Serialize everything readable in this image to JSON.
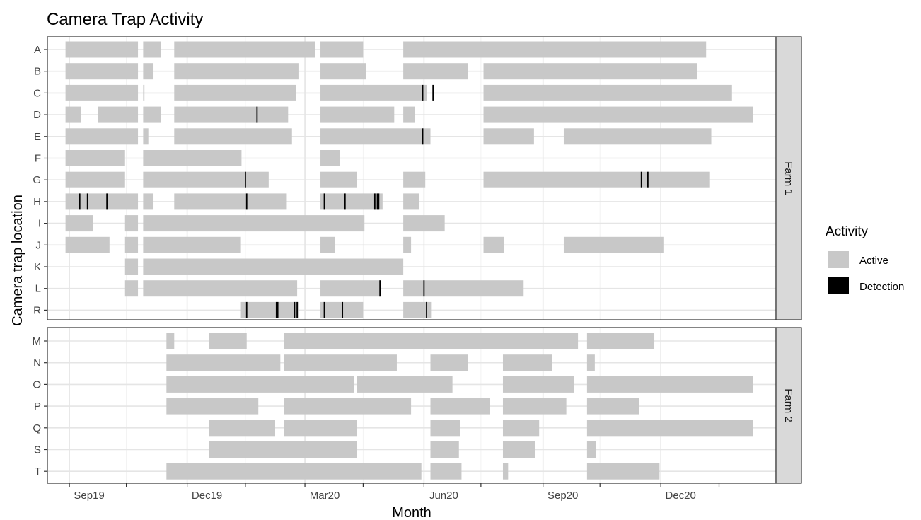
{
  "chart_data": {
    "type": "timeline",
    "title": "Camera Trap Activity",
    "xlabel": "Month",
    "ylabel": "Camera trap location",
    "grid": true,
    "x_range": [
      "2019-08-15",
      "2021-02-28"
    ],
    "x_ticks": [
      {
        "date": "2019-09-01",
        "label": "Sep19"
      },
      {
        "date": "2019-12-01",
        "label": "Dec19"
      },
      {
        "date": "2020-03-01",
        "label": "Mar20"
      },
      {
        "date": "2020-06-01",
        "label": "Jun20"
      },
      {
        "date": "2020-09-01",
        "label": "Sep20"
      },
      {
        "date": "2020-12-01",
        "label": "Dec20"
      }
    ],
    "legend": {
      "title": "Activity",
      "position": "right",
      "items": [
        {
          "label": "Active",
          "color": "#c8c8c8"
        },
        {
          "label": "Detection",
          "color": "#000000"
        }
      ]
    },
    "facets": [
      {
        "label": "Farm 1",
        "rows": [
          {
            "location": "A",
            "active": [
              [
                "2019-08-29",
                "2019-10-24"
              ],
              [
                "2019-10-28",
                "2019-11-11"
              ],
              [
                "2019-11-21",
                "2020-03-09"
              ],
              [
                "2020-03-13",
                "2020-04-15"
              ],
              [
                "2020-05-16",
                "2021-01-05"
              ]
            ],
            "detections": []
          },
          {
            "location": "B",
            "active": [
              [
                "2019-08-29",
                "2019-10-24"
              ],
              [
                "2019-10-28",
                "2019-11-05"
              ],
              [
                "2019-11-21",
                "2020-02-25"
              ],
              [
                "2020-03-13",
                "2020-04-17"
              ],
              [
                "2020-05-16",
                "2020-07-05"
              ],
              [
                "2020-07-17",
                "2020-12-29"
              ]
            ],
            "detections": []
          },
          {
            "location": "C",
            "active": [
              [
                "2019-08-29",
                "2019-10-24"
              ],
              [
                "2019-10-28",
                "2019-10-29"
              ],
              [
                "2019-11-21",
                "2020-02-23"
              ],
              [
                "2020-03-13",
                "2020-06-03"
              ],
              [
                "2020-07-17",
                "2021-01-25"
              ]
            ],
            "detections": [
              "2020-05-31",
              "2020-06-08"
            ]
          },
          {
            "location": "D",
            "active": [
              [
                "2019-08-29",
                "2019-09-10"
              ],
              [
                "2019-09-23",
                "2019-10-24"
              ],
              [
                "2019-10-28",
                "2019-11-11"
              ],
              [
                "2019-11-21",
                "2020-02-17"
              ],
              [
                "2020-03-13",
                "2020-05-09"
              ],
              [
                "2020-05-16",
                "2020-05-25"
              ],
              [
                "2020-07-17",
                "2021-02-10"
              ]
            ],
            "detections": [
              "2020-01-24"
            ]
          },
          {
            "location": "E",
            "active": [
              [
                "2019-08-29",
                "2019-10-24"
              ],
              [
                "2019-10-28",
                "2019-11-01"
              ],
              [
                "2019-11-21",
                "2020-02-20"
              ],
              [
                "2020-03-13",
                "2020-06-06"
              ],
              [
                "2020-07-17",
                "2020-08-25"
              ],
              [
                "2020-09-17",
                "2021-01-09"
              ]
            ],
            "detections": [
              "2020-05-31"
            ]
          },
          {
            "location": "F",
            "active": [
              [
                "2019-08-29",
                "2019-10-14"
              ],
              [
                "2019-10-28",
                "2020-01-12"
              ],
              [
                "2020-03-13",
                "2020-03-28"
              ]
            ],
            "detections": []
          },
          {
            "location": "G",
            "active": [
              [
                "2019-08-29",
                "2019-10-14"
              ],
              [
                "2019-10-28",
                "2020-02-02"
              ],
              [
                "2020-03-13",
                "2020-04-10"
              ],
              [
                "2020-05-16",
                "2020-06-02"
              ],
              [
                "2020-07-17",
                "2021-01-08"
              ]
            ],
            "detections": [
              "2020-01-15",
              "2020-11-16",
              "2020-11-21"
            ]
          },
          {
            "location": "H",
            "active": [
              [
                "2019-08-29",
                "2019-10-24"
              ],
              [
                "2019-10-28",
                "2019-11-05"
              ],
              [
                "2019-11-21",
                "2020-02-16"
              ],
              [
                "2020-03-13",
                "2020-04-30"
              ],
              [
                "2020-05-16",
                "2020-05-28"
              ]
            ],
            "detections": [
              "2019-09-09",
              "2019-09-15",
              "2019-09-30",
              "2020-01-16",
              "2020-03-16",
              "2020-04-01",
              "2020-04-24",
              "2020-04-26",
              "2020-04-27"
            ]
          },
          {
            "location": "I",
            "active": [
              [
                "2019-08-29",
                "2019-09-19"
              ],
              [
                "2019-10-14",
                "2019-10-24"
              ],
              [
                "2019-10-28",
                "2020-04-16"
              ],
              [
                "2020-05-16",
                "2020-06-17"
              ]
            ],
            "detections": []
          },
          {
            "location": "J",
            "active": [
              [
                "2019-08-29",
                "2019-10-02"
              ],
              [
                "2019-10-14",
                "2019-10-24"
              ],
              [
                "2019-10-28",
                "2020-01-11"
              ],
              [
                "2020-03-13",
                "2020-03-24"
              ],
              [
                "2020-05-16",
                "2020-05-22"
              ],
              [
                "2020-07-17",
                "2020-08-02"
              ],
              [
                "2020-09-17",
                "2020-12-03"
              ]
            ],
            "detections": []
          },
          {
            "location": "K",
            "active": [
              [
                "2019-10-14",
                "2019-10-24"
              ],
              [
                "2019-10-28",
                "2020-05-16"
              ]
            ],
            "detections": []
          },
          {
            "location": "L",
            "active": [
              [
                "2019-10-14",
                "2019-10-24"
              ],
              [
                "2019-10-28",
                "2020-02-24"
              ],
              [
                "2020-03-13",
                "2020-04-28"
              ],
              [
                "2020-05-16",
                "2020-08-17"
              ]
            ],
            "detections": [
              "2020-04-28",
              "2020-06-01"
            ]
          },
          {
            "location": "R",
            "active": [
              [
                "2020-01-11",
                "2020-02-25"
              ],
              [
                "2020-03-13",
                "2020-04-15"
              ],
              [
                "2020-05-16",
                "2020-06-07"
              ]
            ],
            "detections": [
              "2020-01-16",
              "2020-02-08",
              "2020-02-09",
              "2020-02-22",
              "2020-02-24",
              "2020-03-16",
              "2020-03-30",
              "2020-06-03"
            ]
          }
        ]
      },
      {
        "label": "Farm 2",
        "rows": [
          {
            "location": "M",
            "active": [
              [
                "2019-11-15",
                "2019-11-21"
              ],
              [
                "2019-12-18",
                "2020-01-16"
              ],
              [
                "2020-02-14",
                "2020-09-28"
              ],
              [
                "2020-10-05",
                "2020-11-26"
              ]
            ],
            "detections": []
          },
          {
            "location": "N",
            "active": [
              [
                "2019-11-15",
                "2020-02-11"
              ],
              [
                "2020-02-14",
                "2020-05-11"
              ],
              [
                "2020-06-06",
                "2020-07-05"
              ],
              [
                "2020-08-01",
                "2020-09-08"
              ],
              [
                "2020-10-05",
                "2020-10-11"
              ]
            ],
            "detections": []
          },
          {
            "location": "O",
            "active": [
              [
                "2019-11-15",
                "2020-04-08"
              ],
              [
                "2020-04-10",
                "2020-06-23"
              ],
              [
                "2020-08-01",
                "2020-09-25"
              ],
              [
                "2020-10-05",
                "2021-02-10"
              ]
            ],
            "detections": []
          },
          {
            "location": "P",
            "active": [
              [
                "2019-11-15",
                "2020-01-25"
              ],
              [
                "2020-02-14",
                "2020-05-22"
              ],
              [
                "2020-06-06",
                "2020-07-22"
              ],
              [
                "2020-08-01",
                "2020-09-19"
              ],
              [
                "2020-10-05",
                "2020-11-14"
              ]
            ],
            "detections": []
          },
          {
            "location": "Q",
            "active": [
              [
                "2019-12-18",
                "2020-02-07"
              ],
              [
                "2020-02-14",
                "2020-04-10"
              ],
              [
                "2020-06-06",
                "2020-06-29"
              ],
              [
                "2020-08-01",
                "2020-08-29"
              ],
              [
                "2020-10-05",
                "2021-02-10"
              ]
            ],
            "detections": []
          },
          {
            "location": "S",
            "active": [
              [
                "2019-12-18",
                "2020-04-10"
              ],
              [
                "2020-06-06",
                "2020-06-28"
              ],
              [
                "2020-08-01",
                "2020-08-26"
              ],
              [
                "2020-10-05",
                "2020-10-12"
              ]
            ],
            "detections": []
          },
          {
            "location": "T",
            "active": [
              [
                "2019-11-15",
                "2020-05-30"
              ],
              [
                "2020-06-06",
                "2020-06-30"
              ],
              [
                "2020-08-01",
                "2020-08-05"
              ],
              [
                "2020-10-05",
                "2020-11-30"
              ]
            ],
            "detections": []
          }
        ]
      }
    ]
  }
}
